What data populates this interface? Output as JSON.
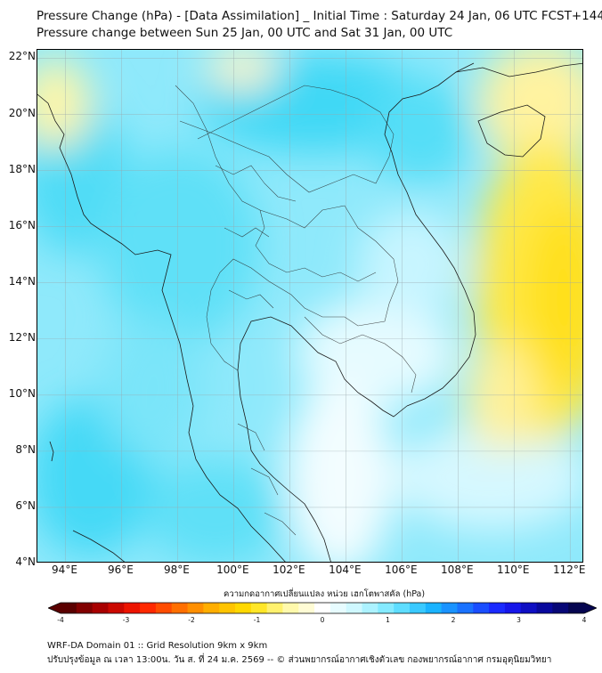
{
  "header": {
    "title_line1": "Pressure Change (hPa) - [Data Assimilation] _ Initial Time : Saturday 24 Jan, 06 UTC FCST+144",
    "title_line2": "Pressure change between Sun 25 Jan, 00 UTC and Sat 31 Jan, 00 UTC"
  },
  "map": {
    "lat_ticks": [
      {
        "value": 22,
        "label": "22°N"
      },
      {
        "value": 20,
        "label": "20°N"
      },
      {
        "value": 18,
        "label": "18°N"
      },
      {
        "value": 16,
        "label": "16°N"
      },
      {
        "value": 14,
        "label": "14°N"
      },
      {
        "value": 12,
        "label": "12°N"
      },
      {
        "value": 10,
        "label": "10°N"
      },
      {
        "value": 8,
        "label": "8°N"
      },
      {
        "value": 6,
        "label": "6°N"
      },
      {
        "value": 4,
        "label": "4°N"
      }
    ],
    "lon_ticks": [
      {
        "value": 94,
        "label": "94°E"
      },
      {
        "value": 96,
        "label": "96°E"
      },
      {
        "value": 98,
        "label": "98°E"
      },
      {
        "value": 100,
        "label": "100°E"
      },
      {
        "value": 102,
        "label": "102°E"
      },
      {
        "value": 104,
        "label": "104°E"
      },
      {
        "value": 106,
        "label": "106°E"
      },
      {
        "value": 108,
        "label": "108°E"
      },
      {
        "value": 110,
        "label": "110°E"
      },
      {
        "value": 112,
        "label": "112°E"
      }
    ],
    "lon_range": [
      93.0,
      112.5
    ],
    "lat_range": [
      4.0,
      22.3
    ],
    "grid": true
  },
  "colorbar": {
    "title": "ความกดอากาศเปลี่ยนแปลง หน่วย เฮกโตพาสคัล (hPa)",
    "range": [
      -4,
      4
    ],
    "ticks": [
      {
        "value": -4,
        "label": "-4"
      },
      {
        "value": -3,
        "label": "-3"
      },
      {
        "value": -2,
        "label": "-2"
      },
      {
        "value": -1,
        "label": "-1"
      },
      {
        "value": 0,
        "label": "0"
      },
      {
        "value": 1,
        "label": "1"
      },
      {
        "value": 2,
        "label": "2"
      },
      {
        "value": 3,
        "label": "3"
      },
      {
        "value": 4,
        "label": "4"
      }
    ],
    "colors": [
      "#5a0000",
      "#b30000",
      "#ff1a00",
      "#ff6a00",
      "#ffb300",
      "#ffe000",
      "#fff8a0",
      "#ffffff",
      "#c8f7ff",
      "#6ee6ff",
      "#1ab8ff",
      "#1a6dff",
      "#1a1aff",
      "#0a0aa8",
      "#05054f"
    ]
  },
  "footer": {
    "line1": "WRF-DA Domain 01 :: Grid Resolution 9km x 9km",
    "line2": "ปรับปรุงข้อมูล ณ เวลา 13:00น. วัน ส. ที่ 24 ม.ค. 2569 -- © ส่วนพยากรณ์อากาศเชิงตัวเลข กองพยากรณ์อากาศ กรมอุตุนิยมวิทยา"
  }
}
